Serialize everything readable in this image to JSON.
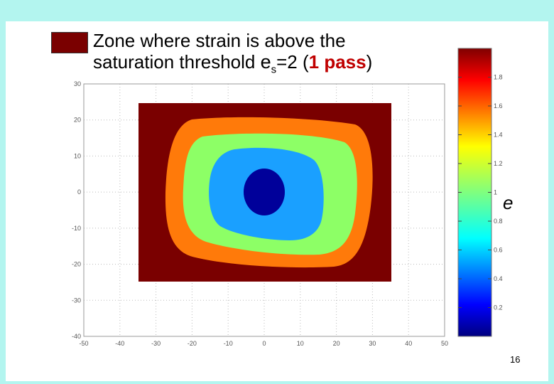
{
  "title": {
    "line1": "Zone where strain is above the",
    "line2_prefix": "saturation threshold ",
    "symbol": "e",
    "subscript": "s",
    "equals": "=2 (",
    "pass": "1 pass",
    "close": ")"
  },
  "colorbar_label": "e",
  "page_number": "16",
  "colors": {
    "saturated": "#7a0000",
    "orange": "#ff7a0a",
    "green": "#8dff66",
    "cyan": "#1aa0ff",
    "blue": "#00009a",
    "background": "#b3f5ef"
  },
  "chart_data": {
    "type": "heatmap",
    "subtype": "filled-contour",
    "x_ticks": [
      "-50",
      "-40",
      "-30",
      "-20",
      "-10",
      "0",
      "10",
      "20",
      "30",
      "40",
      "50"
    ],
    "y_ticks": [
      "30",
      "20",
      "10",
      "0",
      "-10",
      "-20",
      "-30",
      "-40"
    ],
    "xlim": [
      -50,
      50
    ],
    "ylim": [
      -40,
      30
    ],
    "grid": true,
    "colorbar": {
      "range": [
        0,
        2
      ],
      "ticks": [
        "1.8",
        "1.6",
        "1.4",
        "1.2",
        "1",
        "0.8",
        "0.6",
        "0.4",
        "0.2"
      ]
    },
    "contour_levels": [
      {
        "name": "saturated",
        "color": "#7a0000"
      },
      {
        "name": "orange",
        "color": "#ff7a0a"
      },
      {
        "name": "green",
        "color": "#8dff66"
      },
      {
        "name": "cyan",
        "color": "#1aa0ff"
      },
      {
        "name": "blue",
        "color": "#00009a"
      }
    ]
  }
}
